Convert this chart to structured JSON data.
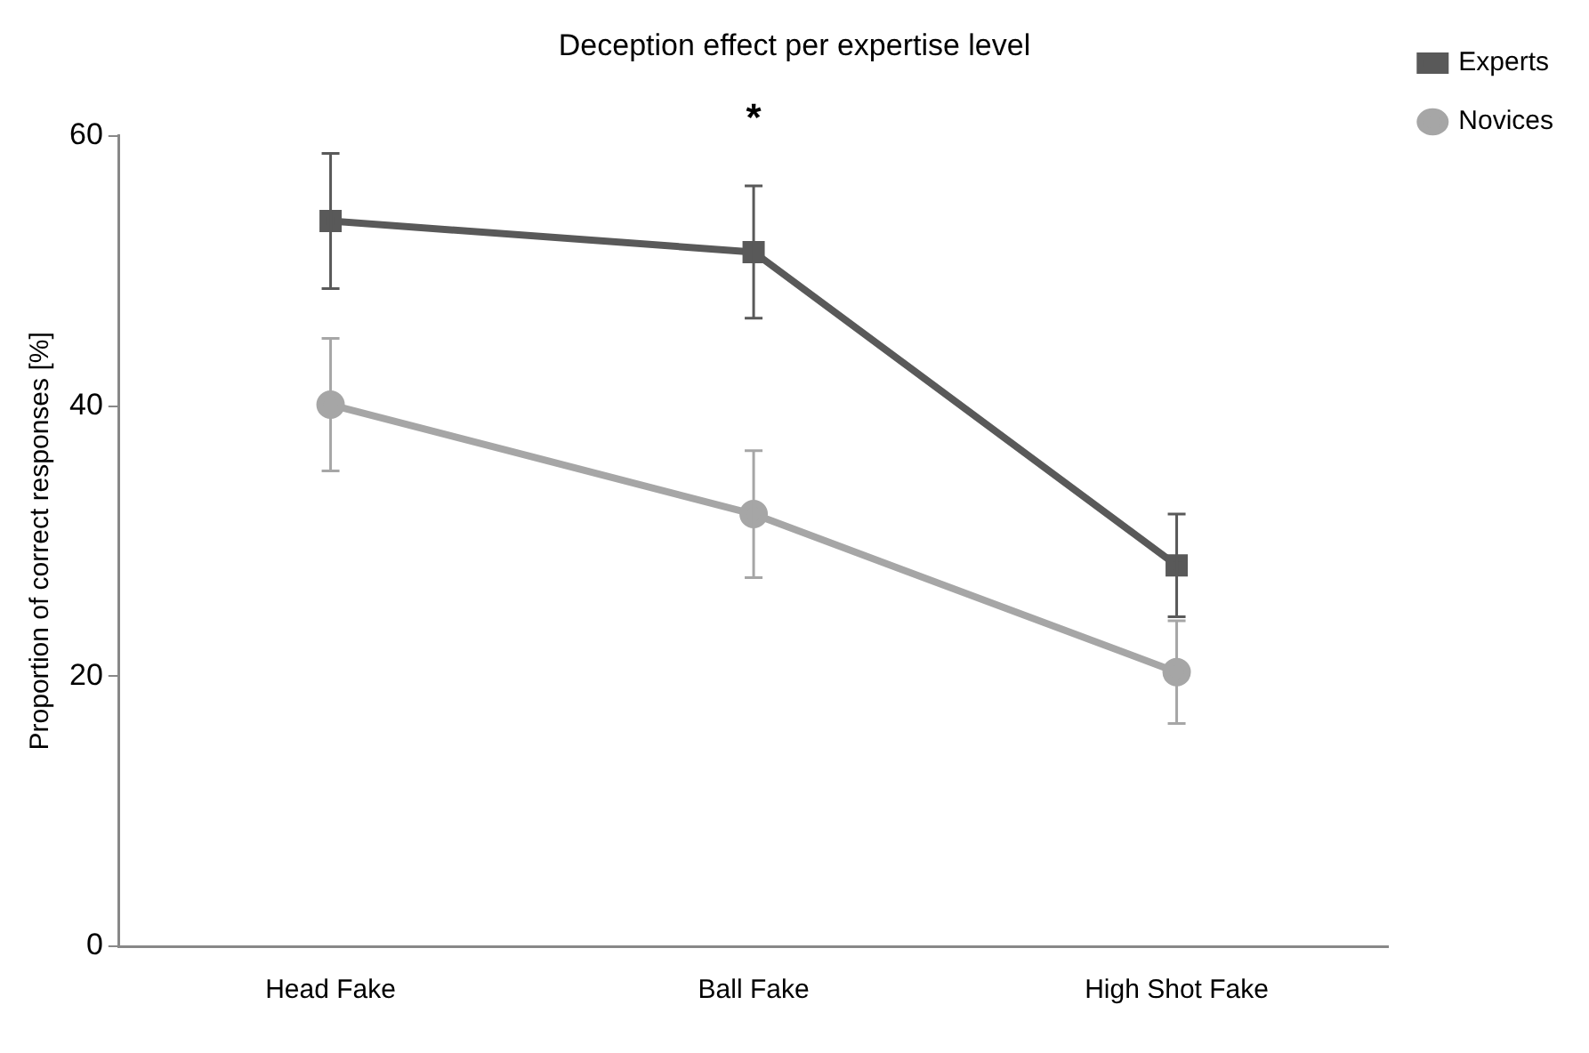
{
  "chart_data": {
    "type": "line",
    "title": "Deception effect per expertise level",
    "ylabel": "Proportion of correct responses [%]",
    "categories": [
      "Head Fake",
      "Ball Fake",
      "High Shot Fake"
    ],
    "series": [
      {
        "name": "Experts",
        "color": "#595959",
        "marker": "square",
        "values": [
          53.7,
          51.4,
          28.2
        ],
        "errors": [
          5,
          4.9,
          3.8
        ]
      },
      {
        "name": "Novices",
        "color": "#a6a6a6",
        "marker": "circle",
        "values": [
          40.1,
          32.0,
          20.3
        ],
        "errors": [
          4.9,
          4.7,
          3.8
        ]
      }
    ],
    "ylim": [
      0,
      60
    ],
    "yticks": [
      0,
      20,
      40,
      60
    ],
    "grid": false,
    "legend": "top right",
    "annotations": [
      "*"
    ]
  }
}
